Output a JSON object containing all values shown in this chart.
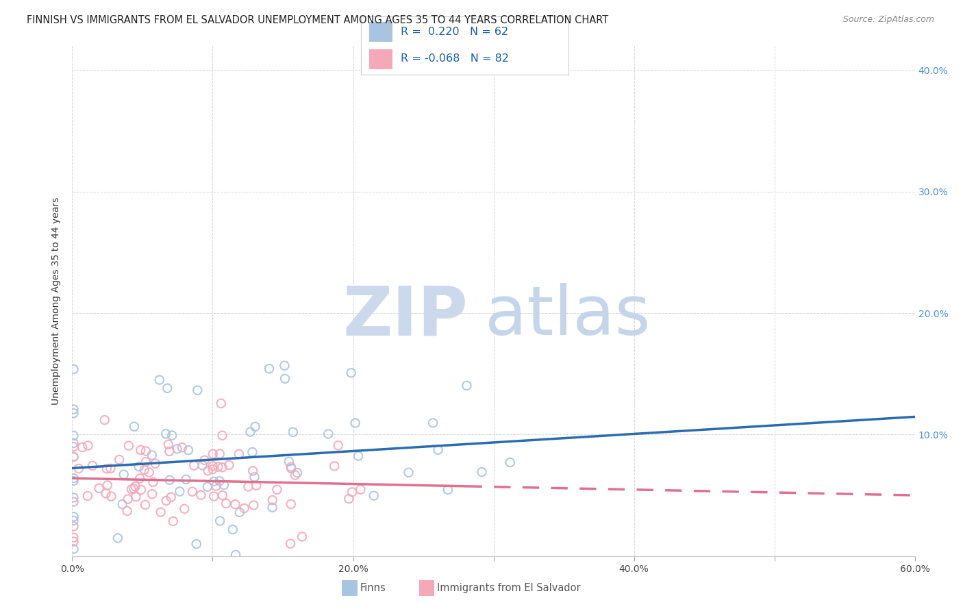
{
  "title": "FINNISH VS IMMIGRANTS FROM EL SALVADOR UNEMPLOYMENT AMONG AGES 35 TO 44 YEARS CORRELATION CHART",
  "source": "Source: ZipAtlas.com",
  "ylabel": "Unemployment Among Ages 35 to 44 years",
  "xlim": [
    0.0,
    0.6
  ],
  "ylim": [
    0.0,
    0.42
  ],
  "finns_R": 0.22,
  "finns_N": 62,
  "immigrants_R": -0.068,
  "immigrants_N": 82,
  "finns_color": "#a8c4e0",
  "immigrants_color": "#f4a8b8",
  "finns_line_color": "#2b6cb0",
  "immigrants_line_color": "#e07090",
  "right_tick_color": "#4a90d9",
  "legend_text_color": "#1a5fa8",
  "watermark_zip_color": "#ccd8ec",
  "watermark_atlas_color": "#c5d5ea"
}
